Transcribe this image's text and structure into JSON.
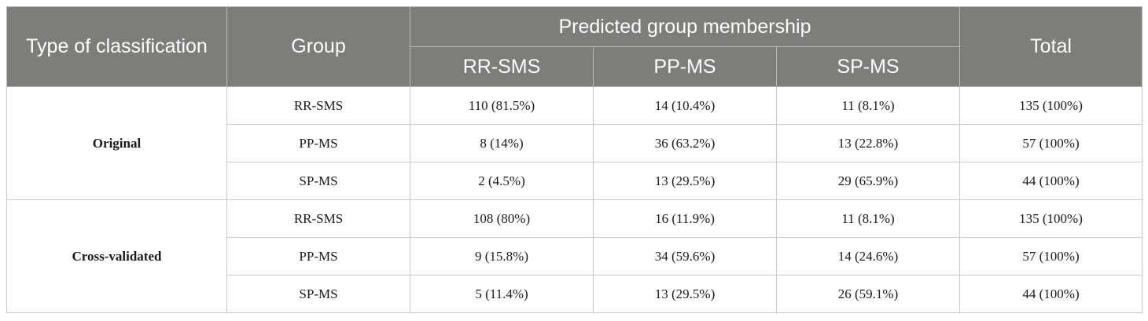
{
  "header": {
    "type_label": "Type of classification",
    "group_label": "Group",
    "predicted_label": "Predicted group membership",
    "total_label": "Total",
    "sub_columns": [
      "RR-SMS",
      "PP-MS",
      "SP-MS"
    ]
  },
  "sections": [
    {
      "classification": "Original",
      "rows": [
        {
          "group": "RR-SMS",
          "rr_sms": "110 (81.5%)",
          "pp_ms": "14 (10.4%)",
          "sp_ms": "11 (8.1%)",
          "total": "135 (100%)"
        },
        {
          "group": "PP-MS",
          "rr_sms": "8 (14%)",
          "pp_ms": "36 (63.2%)",
          "sp_ms": "13 (22.8%)",
          "total": "57 (100%)"
        },
        {
          "group": "SP-MS",
          "rr_sms": "2 (4.5%)",
          "pp_ms": "13 (29.5%)",
          "sp_ms": "29 (65.9%)",
          "total": "44 (100%)"
        }
      ]
    },
    {
      "classification": "Cross-validated",
      "rows": [
        {
          "group": "RR-SMS",
          "rr_sms": "108 (80%)",
          "pp_ms": "16 (11.9%)",
          "sp_ms": "11 (8.1%)",
          "total": "135 (100%)"
        },
        {
          "group": "PP-MS",
          "rr_sms": "9 (15.8%)",
          "pp_ms": "34 (59.6%)",
          "sp_ms": "14 (24.6%)",
          "total": "57 (100%)"
        },
        {
          "group": "SP-MS",
          "rr_sms": "5 (11.4%)",
          "pp_ms": "13 (29.5%)",
          "sp_ms": "26 (59.1%)",
          "total": "44 (100%)"
        }
      ]
    }
  ]
}
